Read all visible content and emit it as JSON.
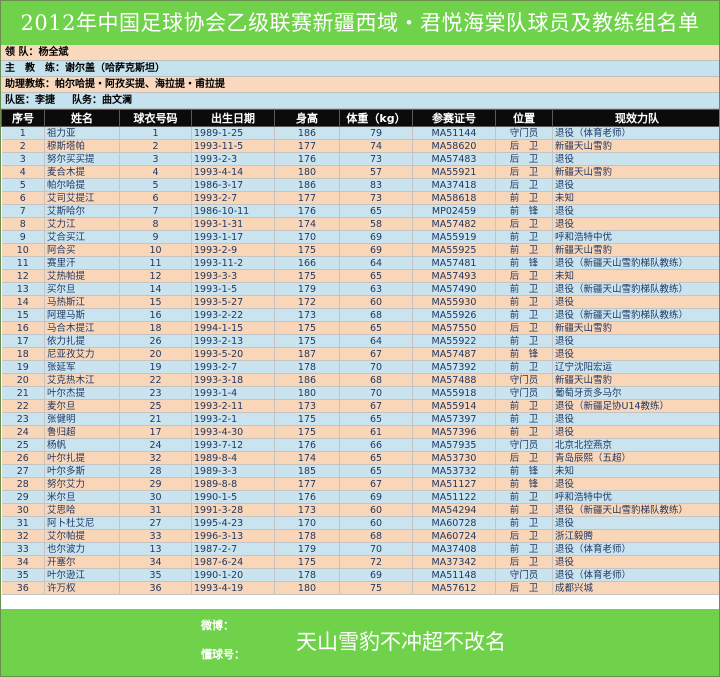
{
  "title": "2012年中国足球协会乙级联赛新疆西域・君悦海棠队球员及教练组名单",
  "info": {
    "leader": "领 队：杨全斌",
    "head_coach": "主　教　练：谢尔盖（哈萨克斯坦）",
    "assistant_coaches": "助理教练：帕尔哈提・阿孜买提、海拉提・甫拉提",
    "doctor": "队医：李捷",
    "manager": "队务：曲文澜"
  },
  "columns": [
    "序号",
    "姓名",
    "球衣号码",
    "出生日期",
    "身高",
    "体重（kg）",
    "参赛证号",
    "位置",
    "现效力队"
  ],
  "rows": [
    [
      "1",
      "祖力亚",
      "1",
      "1989-1-25",
      "186",
      "79",
      "MA51144",
      "守门员",
      "退役（体育老师）"
    ],
    [
      "2",
      "穆斯塔帕",
      "2",
      "1993-11-5",
      "177",
      "74",
      "MA58620",
      "后　卫",
      "新疆天山雪豹"
    ],
    [
      "3",
      "努尔买买提",
      "3",
      "1993-2-3",
      "176",
      "73",
      "MA57483",
      "后　卫",
      "退役"
    ],
    [
      "4",
      "麦合木提",
      "4",
      "1993-4-14",
      "180",
      "57",
      "MA55921",
      "后　卫",
      "新疆天山雪豹"
    ],
    [
      "5",
      "帕尔哈提",
      "5",
      "1986-3-17",
      "186",
      "83",
      "MA37418",
      "后　卫",
      "退役"
    ],
    [
      "6",
      "艾司艾提江",
      "6",
      "1993-2-7",
      "177",
      "73",
      "MA58618",
      "前　卫",
      "未知"
    ],
    [
      "7",
      "艾斯哈尔",
      "7",
      "1986-10-11",
      "176",
      "65",
      "MP02459",
      "前　锋",
      "退役"
    ],
    [
      "8",
      "艾力江",
      "8",
      "1993-1-31",
      "174",
      "58",
      "MA57482",
      "后　卫",
      "退役"
    ],
    [
      "9",
      "艾合买江",
      "9",
      "1993-1-17",
      "170",
      "69",
      "MA55919",
      "前　卫",
      "呼和浩特中优"
    ],
    [
      "10",
      "阿合买",
      "10",
      "1993-2-9",
      "175",
      "69",
      "MA55925",
      "前　卫",
      "新疆天山雪豹"
    ],
    [
      "11",
      "赛里汗",
      "11",
      "1993-11-2",
      "166",
      "64",
      "MA57481",
      "前　锋",
      "退役（新疆天山雪豹梯队教练）"
    ],
    [
      "12",
      "艾热帕提",
      "12",
      "1993-3-3",
      "175",
      "65",
      "MA57493",
      "后　卫",
      "未知"
    ],
    [
      "13",
      "买尔旦",
      "14",
      "1993-1-5",
      "179",
      "63",
      "MA57490",
      "前　卫",
      "退役（新疆天山雪豹梯队教练）"
    ],
    [
      "14",
      "马热斯江",
      "15",
      "1993-5-27",
      "172",
      "60",
      "MA55930",
      "前　卫",
      "退役"
    ],
    [
      "15",
      "阿理马斯",
      "16",
      "1993-2-22",
      "173",
      "68",
      "MA55926",
      "前　卫",
      "退役（新疆天山雪豹梯队教练）"
    ],
    [
      "16",
      "马合木提江",
      "18",
      "1994-1-15",
      "175",
      "65",
      "MA57550",
      "后　卫",
      "新疆天山雪豹"
    ],
    [
      "17",
      "依力扎提",
      "26",
      "1993-2-13",
      "175",
      "64",
      "MA55922",
      "前　卫",
      "退役"
    ],
    [
      "18",
      "尼亚孜艾力",
      "20",
      "1993-5-20",
      "187",
      "67",
      "MA57487",
      "前　锋",
      "退役"
    ],
    [
      "19",
      "张延军",
      "19",
      "1993-2-7",
      "178",
      "70",
      "MA57392",
      "前　卫",
      "辽宁沈阳宏运"
    ],
    [
      "20",
      "艾克热木江",
      "22",
      "1993-3-18",
      "186",
      "68",
      "MA57488",
      "守门员",
      "新疆天山雪豹"
    ],
    [
      "21",
      "叶尔杰提",
      "23",
      "1993-1-4",
      "180",
      "70",
      "MA55918",
      "守门员",
      "葡萄牙贡多马尔"
    ],
    [
      "22",
      "麦尔旦",
      "25",
      "1993-2-11",
      "173",
      "67",
      "MA55914",
      "前　卫",
      "退役（新疆足协U14教练）"
    ],
    [
      "23",
      "张健明",
      "21",
      "1993-2-1",
      "175",
      "65",
      "MA57397",
      "前　卫",
      "退役"
    ],
    [
      "24",
      "鲁归超",
      "17",
      "1993-4-30",
      "175",
      "61",
      "MA57396",
      "前　卫",
      "退役"
    ],
    [
      "25",
      "杨帆",
      "24",
      "1993-7-12",
      "176",
      "66",
      "MA57935",
      "守门员",
      "北京北控燕京"
    ],
    [
      "26",
      "叶尔扎提",
      "32",
      "1989-8-4",
      "174",
      "65",
      "MA53730",
      "后　卫",
      "青岛辰熙（五超）"
    ],
    [
      "27",
      "叶尔多斯",
      "28",
      "1989-3-3",
      "185",
      "65",
      "MA53732",
      "前　锋",
      "未知"
    ],
    [
      "28",
      "努尔艾力",
      "29",
      "1989-8-8",
      "177",
      "67",
      "MA51127",
      "前　锋",
      "退役"
    ],
    [
      "29",
      "米尔旦",
      "30",
      "1990-1-5",
      "176",
      "69",
      "MA51122",
      "前　卫",
      "呼和浩特中优"
    ],
    [
      "30",
      "艾思哈",
      "31",
      "1991-3-28",
      "173",
      "60",
      "MA54294",
      "前　卫",
      "退役（新疆天山雪豹梯队教练）"
    ],
    [
      "31",
      "阿卜杜艾尼",
      "27",
      "1995-4-23",
      "170",
      "60",
      "MA60728",
      "前　卫",
      "退役"
    ],
    [
      "32",
      "艾尔帕提",
      "33",
      "1996-3-13",
      "178",
      "68",
      "MA60724",
      "后　卫",
      "浙江毅腾"
    ],
    [
      "33",
      "也尔波力",
      "13",
      "1987-2-7",
      "179",
      "70",
      "MA37408",
      "前　卫",
      "退役（体育老师）"
    ],
    [
      "34",
      "开塞尔",
      "34",
      "1987-6-24",
      "175",
      "72",
      "MA37342",
      "后　卫",
      "退役"
    ],
    [
      "35",
      "叶尔逊江",
      "35",
      "1990-1-20",
      "178",
      "69",
      "MA51148",
      "守门员",
      "退役（体育老师）"
    ],
    [
      "36",
      "许万权",
      "36",
      "1993-4-19",
      "180",
      "75",
      "MA57612",
      "后　卫",
      "成都兴城"
    ]
  ],
  "footer": {
    "weibo_label": "微博：",
    "dongqiu_label": "懂球号：",
    "slogan": "天山雪豹不冲超不改名"
  },
  "colors": {
    "title_bg": "#6fd24a",
    "row_blue": "#c9e4ef",
    "row_peach": "#fad6b9",
    "header_bg": "#0b0b0b",
    "cell_text": "#1f3864"
  }
}
